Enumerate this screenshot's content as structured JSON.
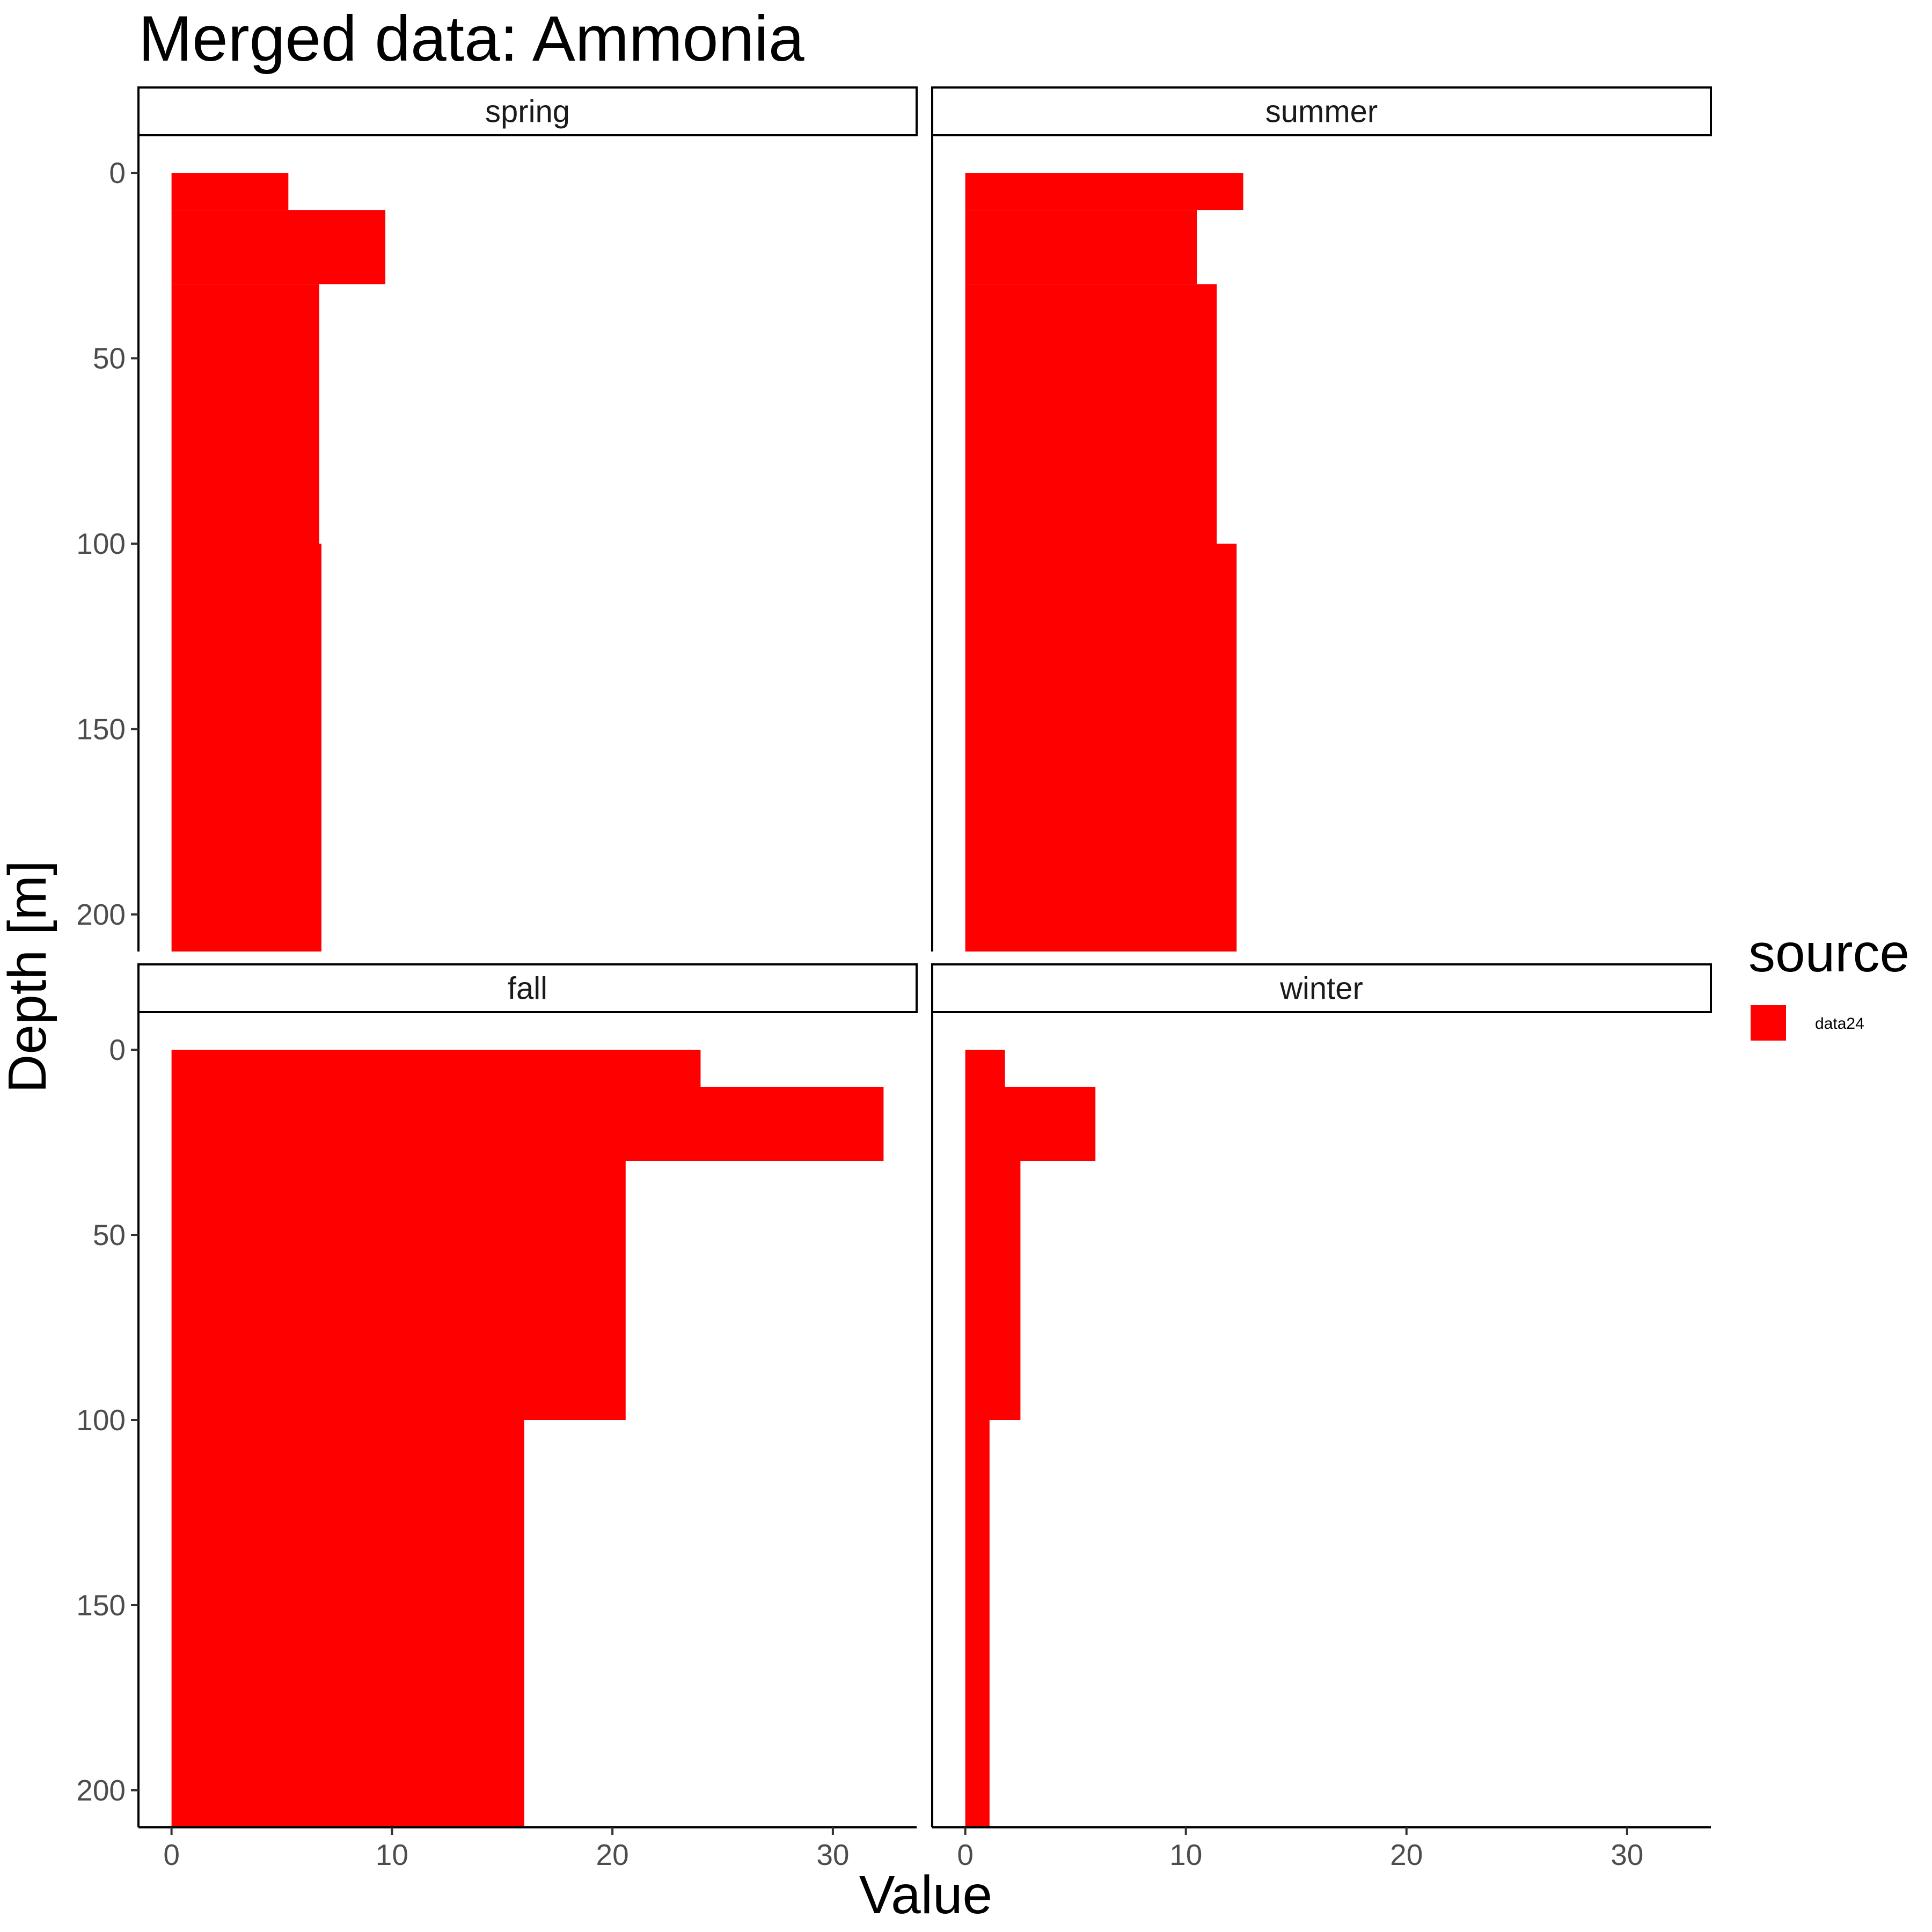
{
  "chart_data": {
    "type": "bar",
    "title": "Merged data: Ammonia",
    "xlabel": "Value",
    "ylabel": "Depth [m]",
    "xlim": [
      -1.5,
      33.8
    ],
    "ylim": [
      -10,
      210
    ],
    "x_ticks": [
      0,
      10,
      20,
      30
    ],
    "y_ticks": [
      0,
      50,
      100,
      150,
      200
    ],
    "orientation": "horizontal",
    "y_reversed": true,
    "grid": false,
    "legend": {
      "title": "source",
      "position": "right",
      "entries": [
        {
          "label": "data24",
          "color": "#FF0000"
        }
      ]
    },
    "panels": [
      {
        "name": "spring",
        "bars": [
          {
            "depth_top": 0,
            "depth_bottom": 10,
            "value": 5.3
          },
          {
            "depth_top": 10,
            "depth_bottom": 30,
            "value": 9.7
          },
          {
            "depth_top": 30,
            "depth_bottom": 100,
            "value": 6.7
          },
          {
            "depth_top": 100,
            "depth_bottom": 210,
            "value": 6.8
          }
        ]
      },
      {
        "name": "summer",
        "bars": [
          {
            "depth_top": 0,
            "depth_bottom": 10,
            "value": 12.6
          },
          {
            "depth_top": 10,
            "depth_bottom": 30,
            "value": 10.5
          },
          {
            "depth_top": 30,
            "depth_bottom": 100,
            "value": 11.4
          },
          {
            "depth_top": 100,
            "depth_bottom": 210,
            "value": 12.3
          }
        ]
      },
      {
        "name": "fall",
        "bars": [
          {
            "depth_top": 0,
            "depth_bottom": 10,
            "value": 24.0
          },
          {
            "depth_top": 10,
            "depth_bottom": 30,
            "value": 32.3
          },
          {
            "depth_top": 30,
            "depth_bottom": 100,
            "value": 20.6
          },
          {
            "depth_top": 100,
            "depth_bottom": 210,
            "value": 16.0
          }
        ]
      },
      {
        "name": "winter",
        "bars": [
          {
            "depth_top": 0,
            "depth_bottom": 10,
            "value": 1.8
          },
          {
            "depth_top": 10,
            "depth_bottom": 30,
            "value": 5.9
          },
          {
            "depth_top": 30,
            "depth_bottom": 100,
            "value": 2.5
          },
          {
            "depth_top": 100,
            "depth_bottom": 210,
            "value": 1.1
          }
        ]
      }
    ],
    "colors": {
      "bar": "#FF0000"
    }
  }
}
